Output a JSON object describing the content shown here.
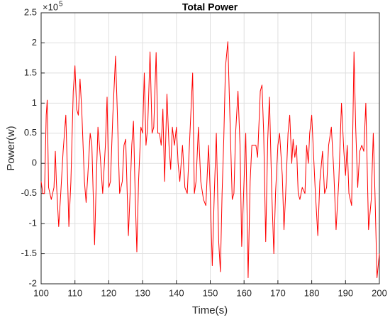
{
  "chart_data": {
    "type": "line",
    "title": "Total Power",
    "x_label": "Time(s)",
    "y_label": "Power(w)",
    "y_multiplier": "×10",
    "y_multiplier_exponent": "5",
    "x": [
      100,
      100.5,
      101,
      101.5,
      101.8,
      102.2,
      103,
      103.8,
      104.2,
      104.5,
      105.2,
      105.8,
      106.5,
      107.3,
      107.8,
      108.2,
      108.8,
      109.5,
      110,
      110.5,
      111,
      111.5,
      112,
      112.8,
      113.3,
      113.8,
      114.5,
      115,
      115.8,
      116.3,
      116.8,
      117.5,
      118.2,
      119,
      119.5,
      120,
      120.5,
      121.2,
      122,
      122.5,
      123.2,
      124,
      124.5,
      125,
      125.8,
      126.3,
      126.8,
      127.3,
      127.8,
      128.3,
      128.8,
      129.5,
      130,
      130.5,
      131,
      131.5,
      132.2,
      132.8,
      133.3,
      134,
      134.5,
      135,
      135.5,
      136,
      136.5,
      137.2,
      137.8,
      138.3,
      138.8,
      139.4,
      140,
      140.5,
      141,
      141.8,
      142.5,
      143.2,
      144,
      144.8,
      145.3,
      145.8,
      146.5,
      147.2,
      148,
      148.7,
      149.5,
      150,
      150.6,
      151.2,
      151.8,
      152.5,
      153,
      153.5,
      154,
      154.5,
      155.2,
      155.8,
      156.5,
      157,
      157.5,
      158.2,
      158.8,
      159.3,
      159.8,
      160.5,
      161.2,
      161.8,
      162.3,
      163,
      163.5,
      164,
      164.8,
      165.3,
      165.8,
      166.4,
      167,
      167.5,
      168.2,
      168.8,
      169.3,
      170,
      170.5,
      171.3,
      171.8,
      172.3,
      173,
      173.5,
      174.1,
      174.5,
      175,
      175.5,
      176,
      176.5,
      177.2,
      178,
      178.5,
      179,
      179.4,
      180,
      180.5,
      181,
      181.8,
      182.4,
      183.2,
      183.8,
      184.4,
      185,
      185.8,
      186.5,
      187.2,
      188,
      188.8,
      189.5,
      190,
      190.5,
      191,
      191.8,
      192.5,
      193,
      193.6,
      194.2,
      194.8,
      195.4,
      196,
      196.8,
      197.6,
      198.2,
      198.7,
      199.3,
      200
    ],
    "series": [
      {
        "color": "#ff0000",
        "values": [
          -0.3,
          -0.5,
          -0.5,
          0.8,
          1.05,
          -0.4,
          -0.6,
          -0.4,
          0.2,
          -0.3,
          -1.05,
          -0.5,
          0.2,
          0.8,
          -0.2,
          -1.05,
          -0.3,
          1.2,
          1.62,
          0.9,
          0.8,
          1.4,
          0.9,
          -0.3,
          -0.65,
          -0.2,
          0.5,
          0.3,
          -1.35,
          -0.3,
          0.6,
          0.1,
          -0.5,
          0.3,
          1.1,
          -0.4,
          -0.3,
          0.8,
          1.78,
          0.9,
          -0.5,
          -0.3,
          0.3,
          0.4,
          -1.2,
          -0.5,
          0.3,
          0.7,
          -0.5,
          -1.47,
          -0.3,
          0.6,
          0.5,
          1.5,
          0.3,
          0.6,
          1.85,
          0.5,
          0.6,
          1.84,
          0.5,
          0.5,
          0.3,
          0.9,
          -0.3,
          1.15,
          0.3,
          -0.1,
          0.6,
          0.3,
          0.6,
          0,
          -0.3,
          0.3,
          -0.4,
          -0.5,
          0.5,
          1.5,
          -0.5,
          -0.3,
          0.6,
          -0.3,
          -0.6,
          -0.7,
          0.3,
          -0.5,
          -1.7,
          -0.5,
          0.5,
          -1.3,
          -1.8,
          -0.5,
          0.4,
          1.6,
          2.02,
          0.8,
          -0.6,
          -0.5,
          0.5,
          1.2,
          0.3,
          -1.38,
          -0.6,
          0.5,
          -1.9,
          -0.3,
          0.3,
          0.3,
          0.3,
          0.1,
          1.2,
          1.3,
          0.5,
          -1.3,
          0.4,
          1.1,
          -0.5,
          -1.5,
          -0.5,
          0.3,
          0.5,
          -0.2,
          -1.1,
          -0.5,
          0.5,
          0.8,
          0,
          0.4,
          0.1,
          0.3,
          -0.5,
          -0.6,
          -0.4,
          -0.5,
          0.3,
          0,
          0.5,
          0.8,
          0.2,
          -0.4,
          -1.2,
          -0.3,
          0.2,
          -0.5,
          -0.4,
          0.3,
          0.6,
          -0.1,
          -1.1,
          -0.3,
          1,
          0.2,
          -0.2,
          0.3,
          -0.5,
          -0.7,
          1.85,
          0.6,
          -0.4,
          0.2,
          0.3,
          0.2,
          1,
          -1.1,
          -0.6,
          0.5,
          -0.5,
          -1.9,
          -1.5
        ]
      }
    ],
    "xlim": [
      100,
      200
    ],
    "xticks": [
      100,
      110,
      120,
      130,
      140,
      150,
      160,
      170,
      180,
      190,
      200
    ],
    "ylim": [
      -2,
      2.5
    ],
    "yticks": [
      -2,
      -1.5,
      -1,
      -0.5,
      0,
      0.5,
      1,
      1.5,
      2,
      2.5
    ],
    "grid": true
  }
}
